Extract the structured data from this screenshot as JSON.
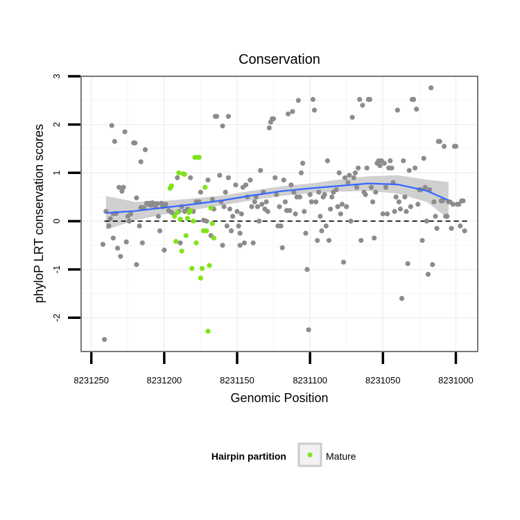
{
  "chart_data": {
    "type": "scatter",
    "title": "Conservation",
    "xlabel": "Genomic Position",
    "ylabel": "phyloP LRT conservation scores",
    "xlim": [
      8231257,
      8230985
    ],
    "ylim": [
      -2.7,
      3.0
    ],
    "x_reversed": true,
    "x_ticks": [
      8231250,
      8231200,
      8231150,
      8231100,
      8231050,
      8231000
    ],
    "x_tick_labels": [
      "8231250",
      "8231200",
      "8231150",
      "8231100",
      "8231050",
      "8231000"
    ],
    "y_ticks": [
      -2,
      -1,
      0,
      1,
      2,
      3
    ],
    "y_tick_labels": [
      "-2",
      "-1",
      "0",
      "1",
      "2",
      "3"
    ],
    "grid": true,
    "reference_line": {
      "y": 0,
      "style": "dashed",
      "color": "#000000"
    },
    "colors": {
      "background": "#ffffff",
      "grid": "#eeeeee",
      "border": "#777777",
      "other": "#8c8c8c",
      "mature": "#7fe41b",
      "smooth_line": "#3366ff",
      "smooth_band": "#c8c8c8"
    },
    "legend": {
      "position": "bottom",
      "title": "Hairpin partition",
      "entries": [
        "Mature"
      ]
    },
    "series": [
      {
        "key": "other",
        "points": [
          [
            8231240,
            0.2
          ],
          [
            8231238,
            -0.1
          ],
          [
            8231237,
            0.05
          ],
          [
            8231236,
            1.98
          ],
          [
            8231235,
            0.15
          ],
          [
            8231235,
            -0.35
          ],
          [
            8231234,
            1.65
          ],
          [
            8231233,
            0.16
          ],
          [
            8231232,
            -0.56
          ],
          [
            8231231,
            0.7
          ],
          [
            8231230,
            -0.73
          ],
          [
            8231229,
            0.62
          ],
          [
            8231228,
            0.7
          ],
          [
            8231227,
            1.85
          ],
          [
            8231226,
            -0.43
          ],
          [
            8231225,
            0.1
          ],
          [
            8231224,
            0.0
          ],
          [
            8231223,
            0.15
          ],
          [
            8231221,
            1.62
          ],
          [
            8231220,
            1.62
          ],
          [
            8231219,
            -0.9
          ],
          [
            8231219,
            0.48
          ],
          [
            8231217,
            -0.1
          ],
          [
            8231216,
            1.23
          ],
          [
            8231216,
            0.28
          ],
          [
            8231215,
            -0.45
          ],
          [
            8231214,
            0.28
          ],
          [
            8231213,
            1.48
          ],
          [
            8231212,
            0.37
          ],
          [
            8231211,
            0.35
          ],
          [
            8231210,
            0.37
          ],
          [
            8231209,
            0.33
          ],
          [
            8231208,
            0.38
          ],
          [
            8231207,
            0.36
          ],
          [
            8231206,
            0.3
          ],
          [
            8231205,
            0.36
          ],
          [
            8231204,
            0.1
          ],
          [
            8231203,
            -0.2
          ],
          [
            8231202,
            0.37
          ],
          [
            8231201,
            0.3
          ],
          [
            8231200,
            -0.6
          ],
          [
            8231199,
            0.35
          ],
          [
            8231197,
            0.22
          ],
          [
            8231195,
            0.18
          ],
          [
            8231193,
            0.12
          ],
          [
            8231191,
            0.9
          ],
          [
            8231190,
            0.2
          ],
          [
            8231189,
            -0.45
          ],
          [
            8231188,
            0.3
          ],
          [
            8231186,
            0.2
          ],
          [
            8231184,
            0.25
          ],
          [
            8231182,
            0.9
          ],
          [
            8231180,
            0.2
          ],
          [
            8231178,
            0.4
          ],
          [
            8231176,
            0.4
          ],
          [
            8231175,
            0.6
          ],
          [
            8231173,
            0.02
          ],
          [
            8231171,
            0.0
          ],
          [
            8231170,
            0.85
          ],
          [
            8231168,
            -0.3
          ],
          [
            8231167,
            0.45
          ],
          [
            8231166,
            0.25
          ],
          [
            8231165,
            2.17
          ],
          [
            8231164,
            2.17
          ],
          [
            8231162,
            0.95
          ],
          [
            8231161,
            0.4
          ],
          [
            8231160,
            1.97
          ],
          [
            8231159,
            0.3
          ],
          [
            8231158,
            0.6
          ],
          [
            8231157,
            -0.1
          ],
          [
            8231156,
            2.17
          ],
          [
            8231155,
            0.25
          ],
          [
            8231154,
            -0.2
          ],
          [
            8231153,
            0.1
          ],
          [
            8231151,
            0.75
          ],
          [
            8231150,
            0.2
          ],
          [
            8231149,
            -0.1
          ],
          [
            8231148,
            -0.25
          ],
          [
            8231147,
            0.15
          ],
          [
            8231146,
            0.7
          ],
          [
            8231145,
            -0.45
          ],
          [
            8231144,
            0.75
          ],
          [
            8231143,
            0.5
          ],
          [
            8231141,
            0.85
          ],
          [
            8231140,
            0.3
          ],
          [
            8231139,
            -0.45
          ],
          [
            8231138,
            0.4
          ],
          [
            8231137,
            0.5
          ],
          [
            8231136,
            0.3
          ],
          [
            8231135,
            0.0
          ],
          [
            8231134,
            1.05
          ],
          [
            8231133,
            0.35
          ],
          [
            8231132,
            0.6
          ],
          [
            8231131,
            0.25
          ],
          [
            8231130,
            0.4
          ],
          [
            8231129,
            0.2
          ],
          [
            8231128,
            1.93
          ],
          [
            8231127,
            2.05
          ],
          [
            8231126,
            2.12
          ],
          [
            8231125,
            2.12
          ],
          [
            8231124,
            0.9
          ],
          [
            8231123,
            0.55
          ],
          [
            8231122,
            -0.1
          ],
          [
            8231121,
            0.3
          ],
          [
            8231120,
            -0.1
          ],
          [
            8231119,
            -0.55
          ],
          [
            8231118,
            0.85
          ],
          [
            8231117,
            0.4
          ],
          [
            8231116,
            0.22
          ],
          [
            8231115,
            2.22
          ],
          [
            8231114,
            0.22
          ],
          [
            8231113,
            0.75
          ],
          [
            8231112,
            2.27
          ],
          [
            8231111,
            0.6
          ],
          [
            8231110,
            0.15
          ],
          [
            8231109,
            0.5
          ],
          [
            8231108,
            2.5
          ],
          [
            8231107,
            0.5
          ],
          [
            8231106,
            1.0
          ],
          [
            8231105,
            1.2
          ],
          [
            8231104,
            0.2
          ],
          [
            8231103,
            -0.25
          ],
          [
            8231102,
            -1.0
          ],
          [
            8231101,
            -2.25
          ],
          [
            8231100,
            0.55
          ],
          [
            8231099,
            0.4
          ],
          [
            8231098,
            2.52
          ],
          [
            8231097,
            2.3
          ],
          [
            8231096,
            0.4
          ],
          [
            8231095,
            -0.4
          ],
          [
            8231094,
            0.6
          ],
          [
            8231093,
            0.1
          ],
          [
            8231092,
            -0.2
          ],
          [
            8231091,
            0.5
          ],
          [
            8231090,
            0.55
          ],
          [
            8231089,
            -0.1
          ],
          [
            8231088,
            1.25
          ],
          [
            8231087,
            -0.4
          ],
          [
            8231086,
            0.25
          ],
          [
            8231085,
            0.5
          ],
          [
            8231084,
            0.6
          ],
          [
            8231082,
            0.65
          ],
          [
            8231081,
            0.3
          ],
          [
            8231080,
            1.0
          ],
          [
            8231079,
            0.15
          ],
          [
            8231078,
            0.35
          ],
          [
            8231077,
            -0.85
          ],
          [
            8231076,
            0.9
          ],
          [
            8231075,
            0.3
          ],
          [
            8231074,
            0.8
          ],
          [
            8231073,
            0.95
          ],
          [
            8231072,
            0.0
          ],
          [
            8231071,
            2.15
          ],
          [
            8231070,
            0.9
          ],
          [
            8231069,
            1.0
          ],
          [
            8231068,
            0.7
          ],
          [
            8231067,
            1.1
          ],
          [
            8231066,
            2.52
          ],
          [
            8231065,
            -0.4
          ],
          [
            8231064,
            2.4
          ],
          [
            8231063,
            0.6
          ],
          [
            8231062,
            0.55
          ],
          [
            8231061,
            1.1
          ],
          [
            8231060,
            2.52
          ],
          [
            8231059,
            2.52
          ],
          [
            8231058,
            0.7
          ],
          [
            8231057,
            0.4
          ],
          [
            8231056,
            -0.35
          ],
          [
            8231055,
            0.6
          ],
          [
            8231054,
            1.2
          ],
          [
            8231053,
            1.25
          ],
          [
            8231052,
            1.15
          ],
          [
            8231051,
            1.25
          ],
          [
            8231050,
            0.15
          ],
          [
            8231049,
            1.2
          ],
          [
            8231048,
            0.7
          ],
          [
            8231047,
            0.15
          ],
          [
            8231046,
            1.1
          ],
          [
            8231045,
            1.25
          ],
          [
            8231044,
            1.1
          ],
          [
            8231043,
            0.8
          ],
          [
            8231042,
            0.2
          ],
          [
            8231041,
            0.5
          ],
          [
            8231040,
            2.3
          ],
          [
            8231039,
            0.4
          ],
          [
            8231038,
            0.25
          ],
          [
            8231037,
            -1.6
          ],
          [
            8231036,
            1.25
          ],
          [
            8231035,
            0.5
          ],
          [
            8231034,
            0.2
          ],
          [
            8231033,
            -0.88
          ],
          [
            8231032,
            1.05
          ],
          [
            8231031,
            0.3
          ],
          [
            8231030,
            2.52
          ],
          [
            8231029,
            2.52
          ],
          [
            8231028,
            1.1
          ],
          [
            8231027,
            2.32
          ],
          [
            8231026,
            0.35
          ],
          [
            8231025,
            0.65
          ],
          [
            8231024,
            0.65
          ],
          [
            8231023,
            -0.4
          ],
          [
            8231022,
            1.3
          ],
          [
            8231021,
            0.7
          ],
          [
            8231020,
            0.0
          ],
          [
            8231019,
            -1.1
          ],
          [
            8231018,
            0.65
          ],
          [
            8231017,
            2.76
          ],
          [
            8231016,
            -0.9
          ],
          [
            8231015,
            0.4
          ],
          [
            8231014,
            0.1
          ],
          [
            8231013,
            -0.15
          ],
          [
            8231012,
            1.65
          ],
          [
            8231011,
            1.65
          ],
          [
            8231010,
            0.42
          ],
          [
            8231009,
            0.42
          ],
          [
            8231008,
            1.55
          ],
          [
            8231007,
            0.1
          ],
          [
            8231006,
            0.1
          ],
          [
            8231005,
            0.4
          ],
          [
            8231004,
            0.4
          ],
          [
            8231003,
            -0.15
          ],
          [
            8231002,
            0.35
          ],
          [
            8231001,
            1.55
          ],
          [
            8231000,
            1.55
          ],
          [
            8230999,
            0.35
          ],
          [
            8230998,
            0.35
          ],
          [
            8230997,
            -0.1
          ],
          [
            8230996,
            0.42
          ],
          [
            8230995,
            0.42
          ],
          [
            8230994,
            -0.2
          ],
          [
            8231242,
            -0.48
          ],
          [
            8231241,
            -2.45
          ],
          [
            8231148,
            -0.5
          ],
          [
            8231160,
            -0.5
          ],
          [
            8231156,
            0.9
          ]
        ]
      },
      {
        "key": "mature",
        "name": "Mature",
        "points": [
          [
            8231196,
            0.68
          ],
          [
            8231195,
            0.73
          ],
          [
            8231193,
            0.1
          ],
          [
            8231192,
            -0.42
          ],
          [
            8231191,
            0.18
          ],
          [
            8231190,
            1.0
          ],
          [
            8231189,
            0.04
          ],
          [
            8231188,
            -0.62
          ],
          [
            8231187,
            0.98
          ],
          [
            8231186,
            0.97
          ],
          [
            8231185,
            -0.3
          ],
          [
            8231184,
            0.06
          ],
          [
            8231183,
            0.18
          ],
          [
            8231182,
            0.22
          ],
          [
            8231181,
            -0.98
          ],
          [
            8231180,
            0.0
          ],
          [
            8231179,
            1.32
          ],
          [
            8231178,
            -0.45
          ],
          [
            8231177,
            1.32
          ],
          [
            8231176,
            1.32
          ],
          [
            8231175,
            -1.18
          ],
          [
            8231174,
            -0.98
          ],
          [
            8231173,
            -0.2
          ],
          [
            8231172,
            0.7
          ],
          [
            8231171,
            -0.2
          ],
          [
            8231170,
            -2.28
          ],
          [
            8231169,
            -0.92
          ],
          [
            8231168,
            0.27
          ],
          [
            8231167,
            -0.05
          ],
          [
            8231166,
            -0.35
          ]
        ]
      }
    ],
    "smooth": {
      "x": [
        8231240,
        8231220,
        8231200,
        8231180,
        8231160,
        8231140,
        8231120,
        8231100,
        8231080,
        8231060,
        8231040,
        8231020,
        8231005
      ],
      "y": [
        0.17,
        0.21,
        0.28,
        0.35,
        0.43,
        0.53,
        0.62,
        0.68,
        0.73,
        0.78,
        0.76,
        0.63,
        0.43
      ],
      "lower": [
        -0.18,
        0.02,
        0.14,
        0.23,
        0.33,
        0.43,
        0.52,
        0.58,
        0.61,
        0.63,
        0.57,
        0.4,
        0.05
      ],
      "upper": [
        0.52,
        0.4,
        0.42,
        0.47,
        0.53,
        0.63,
        0.72,
        0.78,
        0.86,
        0.93,
        0.95,
        0.86,
        0.81
      ]
    }
  }
}
